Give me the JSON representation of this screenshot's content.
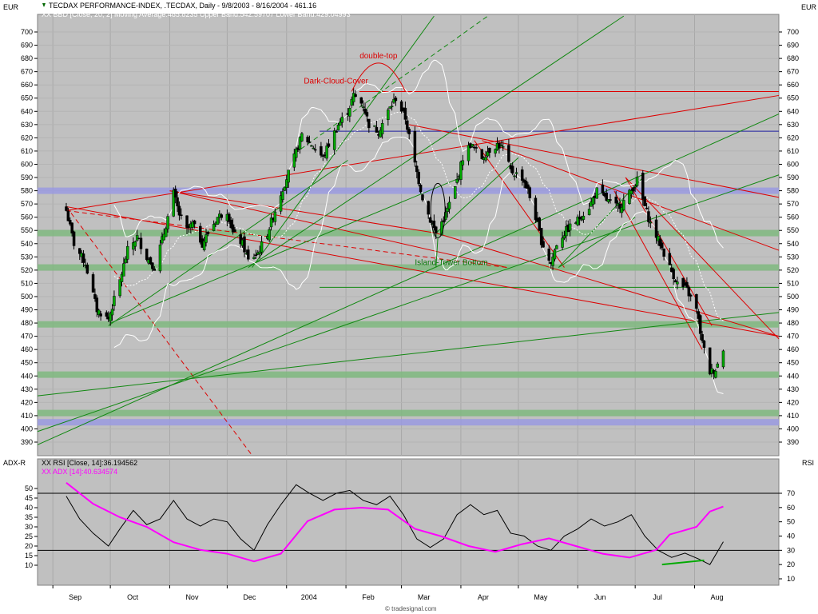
{
  "header": {
    "title": "TECDAX PERFORMANCE-INDEX, .TECDAX, Daily - 9/8/2003 - 8/16/2004 - 461.16",
    "bb_info": "XX BBD [Close, 20, 2] Moving Average:485.8235 Upper Band:542.59707 Lower Band:429.04993",
    "currency_left": "EUR",
    "currency_right": "EUR"
  },
  "lower_panel": {
    "left_axis_title": "ADX-R",
    "right_axis_title": "RSI",
    "rsi_info": "XX RSI [Close, 14]:36.194562",
    "adx_info": "XX ADX [14]:40.634574"
  },
  "footer": {
    "credit": "© tradesignal.com"
  },
  "colors": {
    "panel_bg": "#c0c0c0",
    "frame_bg": "#ffffff",
    "support_band": "#7fb87f",
    "resistance_band": "#9a9ae0",
    "trendline_red": "#dd0000",
    "trendline_green": "#118811",
    "bollinger": "#ffffff",
    "rsi": "#000000",
    "adx": "#ff00ff"
  },
  "annotations": [
    {
      "text": "double-top",
      "color": "red"
    },
    {
      "text": "Dark-Cloud-Cover",
      "color": "red"
    },
    {
      "text": "Island-Tower Bottom",
      "color": "green"
    }
  ],
  "chart_data": [
    {
      "type": "candlestick",
      "title": "TECDAX PERFORMANCE-INDEX, .TECDAX, Daily - 9/8/2003 - 8/16/2004 - 461.16",
      "ylabel": "EUR",
      "ylim": [
        380,
        710
      ],
      "y_ticks": [
        390,
        400,
        410,
        420,
        430,
        440,
        450,
        460,
        470,
        480,
        490,
        500,
        510,
        520,
        530,
        540,
        550,
        560,
        570,
        580,
        590,
        600,
        610,
        620,
        630,
        640,
        650,
        660,
        670,
        680,
        690,
        700
      ],
      "x_tick_labels": [
        "Sep",
        "Oct",
        "Nov",
        "Dec",
        "2004",
        "Feb",
        "Mar",
        "Apr",
        "May",
        "Jun",
        "Jul",
        "Aug"
      ],
      "grid": true,
      "horizontal_levels": [
        {
          "value": 655,
          "kind": "line",
          "color": "red"
        },
        {
          "value": 625,
          "kind": "line",
          "color": "blue"
        },
        {
          "value": 580,
          "kind": "band",
          "color": "blue"
        },
        {
          "value": 548,
          "kind": "band",
          "color": "green"
        },
        {
          "value": 522,
          "kind": "band",
          "color": "green"
        },
        {
          "value": 507,
          "kind": "line",
          "color": "green"
        },
        {
          "value": 479,
          "kind": "band",
          "color": "green"
        },
        {
          "value": 441,
          "kind": "band",
          "color": "green"
        },
        {
          "value": 412,
          "kind": "band",
          "color": "green"
        },
        {
          "value": 405,
          "kind": "band",
          "color": "blue"
        }
      ],
      "close_path": [
        [
          "2003-09-08",
          565
        ],
        [
          "2003-09-12",
          540
        ],
        [
          "2003-09-18",
          525
        ],
        [
          "2003-09-24",
          490
        ],
        [
          "2003-09-30",
          483
        ],
        [
          "2003-10-06",
          512
        ],
        [
          "2003-10-10",
          535
        ],
        [
          "2003-10-15",
          545
        ],
        [
          "2003-10-20",
          530
        ],
        [
          "2003-10-24",
          522
        ],
        [
          "2003-10-29",
          548
        ],
        [
          "2003-11-03",
          578
        ],
        [
          "2003-11-06",
          562
        ],
        [
          "2003-11-10",
          550
        ],
        [
          "2003-11-13",
          555
        ],
        [
          "2003-11-18",
          540
        ],
        [
          "2003-11-21",
          548
        ],
        [
          "2003-11-26",
          560
        ],
        [
          "2003-12-01",
          565
        ],
        [
          "2003-12-04",
          548
        ],
        [
          "2003-12-09",
          540
        ],
        [
          "2003-12-12",
          527
        ],
        [
          "2003-12-17",
          533
        ],
        [
          "2003-12-22",
          548
        ],
        [
          "2003-12-29",
          578
        ],
        [
          "2004-01-05",
          605
        ],
        [
          "2004-01-09",
          622
        ],
        [
          "2004-01-14",
          615
        ],
        [
          "2004-01-20",
          605
        ],
        [
          "2004-01-23",
          615
        ],
        [
          "2004-01-28",
          630
        ],
        [
          "2004-02-02",
          640
        ],
        [
          "2004-02-05",
          652
        ],
        [
          "2004-02-10",
          645
        ],
        [
          "2004-02-13",
          630
        ],
        [
          "2004-02-18",
          625
        ],
        [
          "2004-02-23",
          640
        ],
        [
          "2004-02-27",
          650
        ],
        [
          "2004-03-03",
          635
        ],
        [
          "2004-03-08",
          600
        ],
        [
          "2004-03-12",
          575
        ],
        [
          "2004-03-16",
          558
        ],
        [
          "2004-03-19",
          548
        ],
        [
          "2004-03-24",
          562
        ],
        [
          "2004-03-29",
          582
        ],
        [
          "2004-04-02",
          605
        ],
        [
          "2004-04-06",
          615
        ],
        [
          "2004-04-12",
          605
        ],
        [
          "2004-04-15",
          610
        ],
        [
          "2004-04-20",
          615
        ],
        [
          "2004-04-23",
          612
        ],
        [
          "2004-04-27",
          595
        ],
        [
          "2004-05-03",
          590
        ],
        [
          "2004-05-06",
          580
        ],
        [
          "2004-05-10",
          560
        ],
        [
          "2004-05-13",
          542
        ],
        [
          "2004-05-18",
          525
        ],
        [
          "2004-05-21",
          540
        ],
        [
          "2004-05-26",
          550
        ],
        [
          "2004-06-01",
          558
        ],
        [
          "2004-06-07",
          568
        ],
        [
          "2004-06-11",
          580
        ],
        [
          "2004-06-16",
          573
        ],
        [
          "2004-06-21",
          568
        ],
        [
          "2004-06-24",
          570
        ],
        [
          "2004-06-29",
          580
        ],
        [
          "2004-07-02",
          588
        ],
        [
          "2004-07-06",
          568
        ],
        [
          "2004-07-09",
          555
        ],
        [
          "2004-07-14",
          540
        ],
        [
          "2004-07-19",
          522
        ],
        [
          "2004-07-23",
          510
        ],
        [
          "2004-07-28",
          505
        ],
        [
          "2004-08-02",
          490
        ],
        [
          "2004-08-05",
          465
        ],
        [
          "2004-08-09",
          443
        ],
        [
          "2004-08-12",
          445
        ],
        [
          "2004-08-16",
          461
        ]
      ],
      "series": [
        {
          "name": "XX BBD [Close, 20, 2] Moving Average",
          "last": 485.8235
        },
        {
          "name": "Upper Band",
          "last": 542.59707
        },
        {
          "name": "Lower Band",
          "last": 429.04993
        }
      ]
    },
    {
      "type": "line",
      "left_axis": {
        "label": "ADX-R",
        "ylim": [
          5,
          55
        ],
        "ticks": [
          10,
          15,
          20,
          25,
          30,
          35,
          40,
          45,
          50
        ]
      },
      "right_axis": {
        "label": "RSI",
        "ylim": [
          10,
          75
        ],
        "ticks": [
          10,
          20,
          30,
          40,
          50,
          60,
          70
        ]
      },
      "reference_levels_rsi": [
        70,
        30
      ],
      "series": [
        {
          "name": "XX RSI [Close, 14]",
          "axis": "right",
          "last": 36.194562,
          "points": [
            [
              "2003-09-08",
              68
            ],
            [
              "2003-09-15",
              52
            ],
            [
              "2003-09-22",
              42
            ],
            [
              "2003-09-30",
              33
            ],
            [
              "2003-10-06",
              45
            ],
            [
              "2003-10-13",
              58
            ],
            [
              "2003-10-20",
              48
            ],
            [
              "2003-10-27",
              52
            ],
            [
              "2003-11-03",
              65
            ],
            [
              "2003-11-10",
              52
            ],
            [
              "2003-11-17",
              47
            ],
            [
              "2003-11-24",
              52
            ],
            [
              "2003-12-01",
              50
            ],
            [
              "2003-12-08",
              38
            ],
            [
              "2003-12-15",
              30
            ],
            [
              "2003-12-22",
              48
            ],
            [
              "2003-12-29",
              62
            ],
            [
              "2004-01-06",
              76
            ],
            [
              "2004-01-13",
              70
            ],
            [
              "2004-01-20",
              65
            ],
            [
              "2004-01-27",
              70
            ],
            [
              "2004-02-03",
              72
            ],
            [
              "2004-02-10",
              65
            ],
            [
              "2004-02-17",
              62
            ],
            [
              "2004-02-24",
              68
            ],
            [
              "2004-03-02",
              55
            ],
            [
              "2004-03-09",
              38
            ],
            [
              "2004-03-16",
              32
            ],
            [
              "2004-03-23",
              38
            ],
            [
              "2004-03-30",
              55
            ],
            [
              "2004-04-06",
              62
            ],
            [
              "2004-04-13",
              55
            ],
            [
              "2004-04-20",
              58
            ],
            [
              "2004-04-27",
              42
            ],
            [
              "2004-05-04",
              40
            ],
            [
              "2004-05-11",
              33
            ],
            [
              "2004-05-18",
              30
            ],
            [
              "2004-05-25",
              40
            ],
            [
              "2004-06-01",
              45
            ],
            [
              "2004-06-08",
              52
            ],
            [
              "2004-06-15",
              47
            ],
            [
              "2004-06-22",
              50
            ],
            [
              "2004-06-29",
              55
            ],
            [
              "2004-07-06",
              40
            ],
            [
              "2004-07-13",
              30
            ],
            [
              "2004-07-20",
              25
            ],
            [
              "2004-07-27",
              28
            ],
            [
              "2004-08-03",
              24
            ],
            [
              "2004-08-09",
              20
            ],
            [
              "2004-08-16",
              36
            ]
          ]
        },
        {
          "name": "XX ADX [14]",
          "axis": "left",
          "last": 40.634574,
          "points": [
            [
              "2003-09-08",
              53
            ],
            [
              "2003-09-22",
              42
            ],
            [
              "2003-10-06",
              35
            ],
            [
              "2003-10-20",
              30
            ],
            [
              "2003-11-03",
              22
            ],
            [
              "2003-11-17",
              18
            ],
            [
              "2003-12-01",
              16
            ],
            [
              "2003-12-15",
              12
            ],
            [
              "2003-12-29",
              16
            ],
            [
              "2004-01-12",
              33
            ],
            [
              "2004-01-26",
              39
            ],
            [
              "2004-02-09",
              40
            ],
            [
              "2004-02-23",
              39
            ],
            [
              "2004-03-08",
              29
            ],
            [
              "2004-03-22",
              25
            ],
            [
              "2004-04-05",
              20
            ],
            [
              "2004-04-19",
              17
            ],
            [
              "2004-05-03",
              21
            ],
            [
              "2004-05-17",
              24
            ],
            [
              "2004-05-31",
              20
            ],
            [
              "2004-06-14",
              16
            ],
            [
              "2004-06-28",
              14
            ],
            [
              "2004-07-12",
              18
            ],
            [
              "2004-07-19",
              26
            ],
            [
              "2004-07-26",
              28
            ],
            [
              "2004-08-02",
              30
            ],
            [
              "2004-08-09",
              38
            ],
            [
              "2004-08-16",
              40.6
            ]
          ]
        }
      ]
    }
  ]
}
